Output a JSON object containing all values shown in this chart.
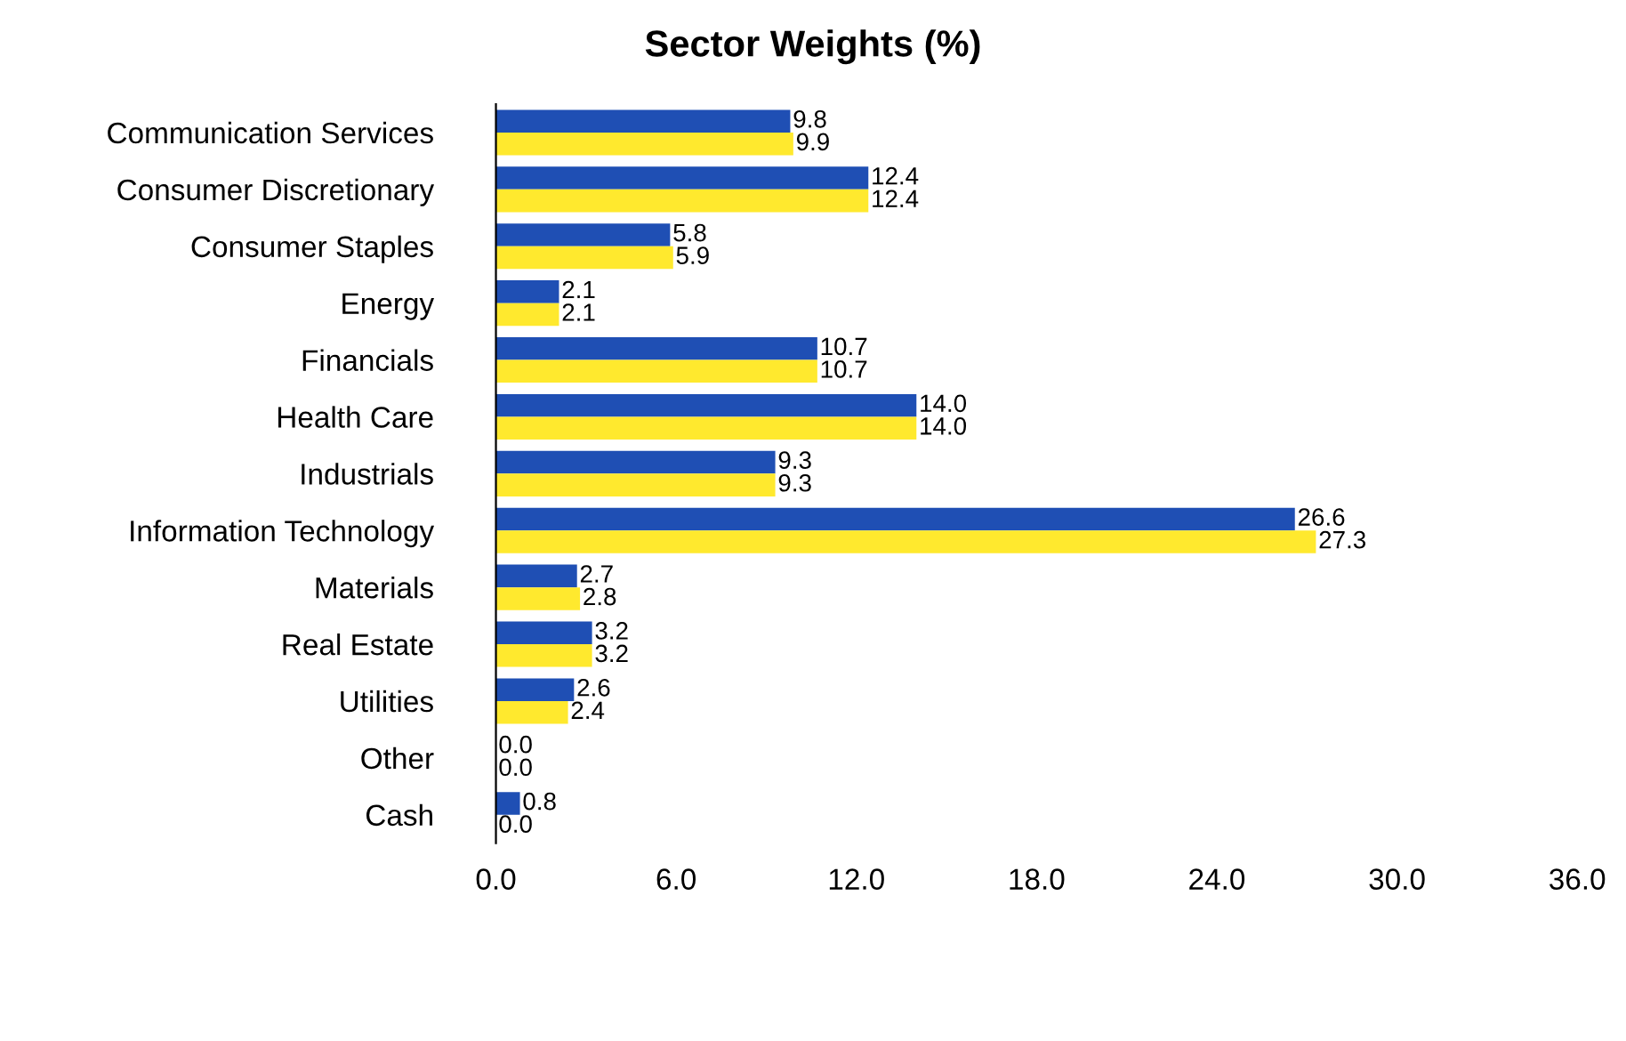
{
  "chart_data": {
    "type": "bar",
    "orientation": "horizontal",
    "title": "Sector Weights (%)",
    "categories": [
      "Communication Services",
      "Consumer Discretionary",
      "Consumer Staples",
      "Energy",
      "Financials",
      "Health Care",
      "Industrials",
      "Information Technology",
      "Materials",
      "Real Estate",
      "Utilities",
      "Other",
      "Cash"
    ],
    "series": [
      {
        "color": "#1f4fb4",
        "values": [
          9.8,
          12.4,
          5.8,
          2.1,
          10.7,
          14.0,
          9.3,
          26.6,
          2.7,
          3.2,
          2.6,
          0.0,
          0.8
        ],
        "value_labels": [
          "9.8",
          "12.4",
          "5.8",
          "2.1",
          "10.7",
          "14.0",
          "9.3",
          "26.6",
          "2.7",
          "3.2",
          "2.6",
          "0.0",
          "0.8"
        ]
      },
      {
        "color": "#ffe92e",
        "values": [
          9.9,
          12.4,
          5.9,
          2.1,
          10.7,
          14.0,
          9.3,
          27.3,
          2.8,
          3.2,
          2.4,
          0.0,
          0.0
        ],
        "value_labels": [
          "9.9",
          "12.4",
          "5.9",
          "2.1",
          "10.7",
          "14.0",
          "9.3",
          "27.3",
          "2.8",
          "3.2",
          "2.4",
          "0.0",
          "0.0"
        ]
      }
    ],
    "xlim": [
      0,
      36
    ],
    "xticks": [
      {
        "value": 0,
        "label": "0.0"
      },
      {
        "value": 6,
        "label": "6.0"
      },
      {
        "value": 12,
        "label": "12.0"
      },
      {
        "value": 18,
        "label": "18.0"
      },
      {
        "value": 24,
        "label": "24.0"
      },
      {
        "value": 30,
        "label": "30.0"
      },
      {
        "value": 36,
        "label": "36.0"
      }
    ],
    "grid": false
  }
}
